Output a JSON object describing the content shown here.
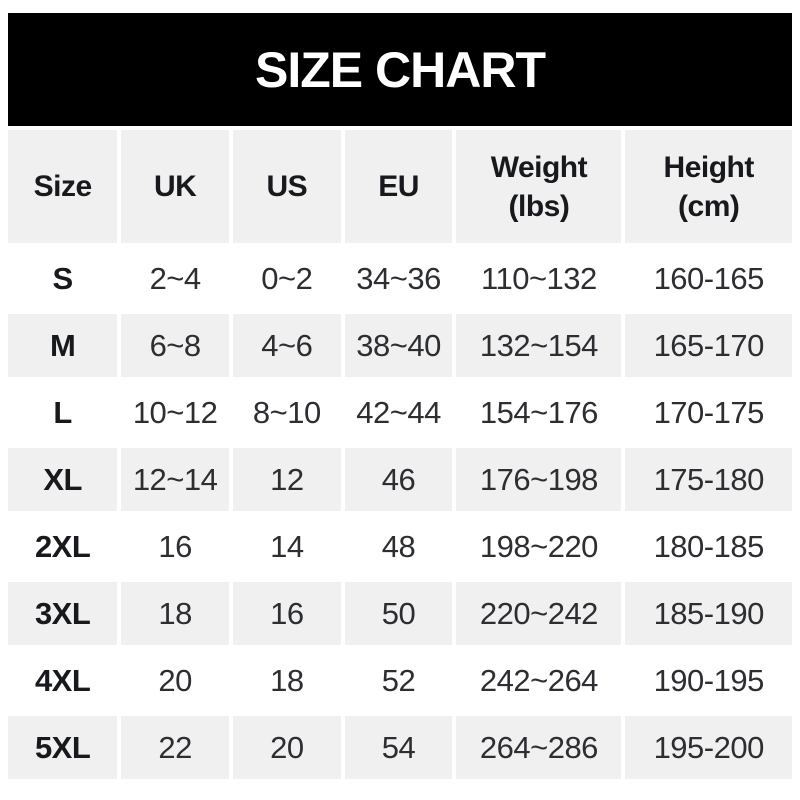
{
  "colors": {
    "banner_bg": "#000000",
    "banner_text": "#ffffff",
    "header_row_bg": "#f0f0f0",
    "alt_row_bg": "#f0f0f0",
    "base_row_bg": "#ffffff",
    "text": "#2c2e31",
    "bold_text": "#17191d"
  },
  "chart_data": {
    "type": "table",
    "title": "SIZE CHART",
    "columns": [
      "Size",
      "UK",
      "US",
      "EU",
      "Weight\n(lbs)",
      "Height\n(cm)"
    ],
    "rows": [
      [
        "S",
        "2~4",
        "0~2",
        "34~36",
        "110~132",
        "160-165"
      ],
      [
        "M",
        "6~8",
        "4~6",
        "38~40",
        "132~154",
        "165-170"
      ],
      [
        "L",
        "10~12",
        "8~10",
        "42~44",
        "154~176",
        "170-175"
      ],
      [
        "XL",
        "12~14",
        "12",
        "46",
        "176~198",
        "175-180"
      ],
      [
        "2XL",
        "16",
        "14",
        "48",
        "198~220",
        "180-185"
      ],
      [
        "3XL",
        "18",
        "16",
        "50",
        "220~242",
        "185-190"
      ],
      [
        "4XL",
        "20",
        "18",
        "52",
        "242~264",
        "190-195"
      ],
      [
        "5XL",
        "22",
        "20",
        "54",
        "264~286",
        "195-200"
      ]
    ]
  }
}
